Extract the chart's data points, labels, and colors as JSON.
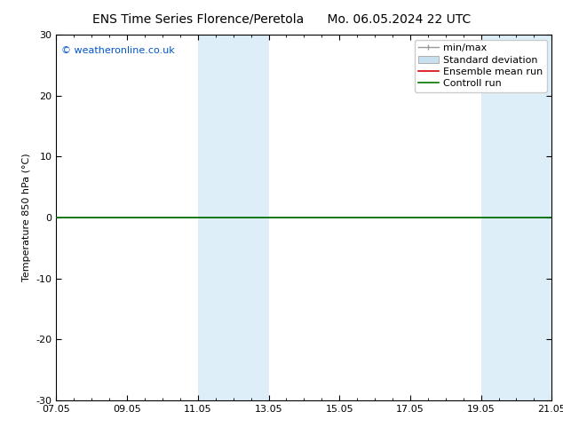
{
  "title_left": "ENS Time Series Florence/Peretola",
  "title_right": "Mo. 06.05.2024 22 UTC",
  "ylabel": "Temperature 850 hPa (°C)",
  "ylim": [
    -30,
    30
  ],
  "yticks": [
    -30,
    -20,
    -10,
    0,
    10,
    20,
    30
  ],
  "xtick_labels": [
    "07.05",
    "09.05",
    "11.05",
    "13.05",
    "15.05",
    "17.05",
    "19.05",
    "21.05"
  ],
  "xtick_positions": [
    0,
    2,
    4,
    6,
    8,
    10,
    12,
    14
  ],
  "num_x_steps": 14,
  "shaded_bands": [
    {
      "xstart": 4,
      "xend": 6
    },
    {
      "xstart": 12,
      "xend": 14
    }
  ],
  "shaded_color": "#ddeef8",
  "control_run_y": 0.0,
  "control_run_color": "#007700",
  "control_run_lw": 1.2,
  "watermark_text": "© weatheronline.co.uk",
  "watermark_color": "#0055cc",
  "watermark_fontsize": 8,
  "background_color": "#ffffff",
  "plot_bg_color": "#ffffff",
  "border_color": "#000000",
  "tick_color": "#000000",
  "tick_fontsize": 8,
  "ylabel_fontsize": 8,
  "title_fontsize": 10,
  "legend_fontsize": 8,
  "minmax_color": "#999999",
  "stddev_color": "#c8dff0",
  "ensemble_color": "#dd0000",
  "controll_color": "#007700"
}
